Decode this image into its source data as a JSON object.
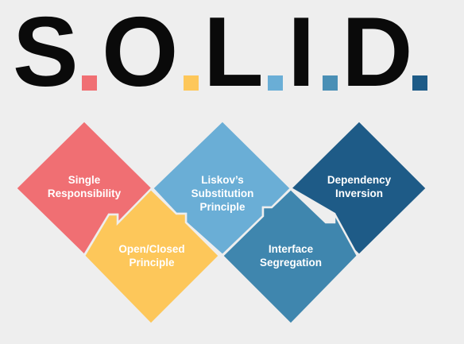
{
  "title": {
    "letters": [
      "S",
      "O",
      "L",
      "I",
      "D"
    ],
    "dot_colors": [
      "#f06f73",
      "#fdc75a",
      "#6aaed6",
      "#4a8fb5",
      "#1e5b87"
    ]
  },
  "principles": {
    "s": {
      "line1": "Single",
      "line2": "Responsibility",
      "line3": "",
      "color": "#f06f73"
    },
    "o": {
      "line1": "Open/Closed",
      "line2": "Principle",
      "line3": "",
      "color": "#fdc75a"
    },
    "l": {
      "line1": "Liskov’s",
      "line2": "Substitution",
      "line3": "Principle",
      "color": "#6aaed6"
    },
    "i": {
      "line1": "Interface",
      "line2": "Segregation",
      "line3": "",
      "color": "#3f86ae"
    },
    "d": {
      "line1": "Dependency",
      "line2": "Inversion",
      "line3": "",
      "color": "#1e5b87"
    }
  }
}
